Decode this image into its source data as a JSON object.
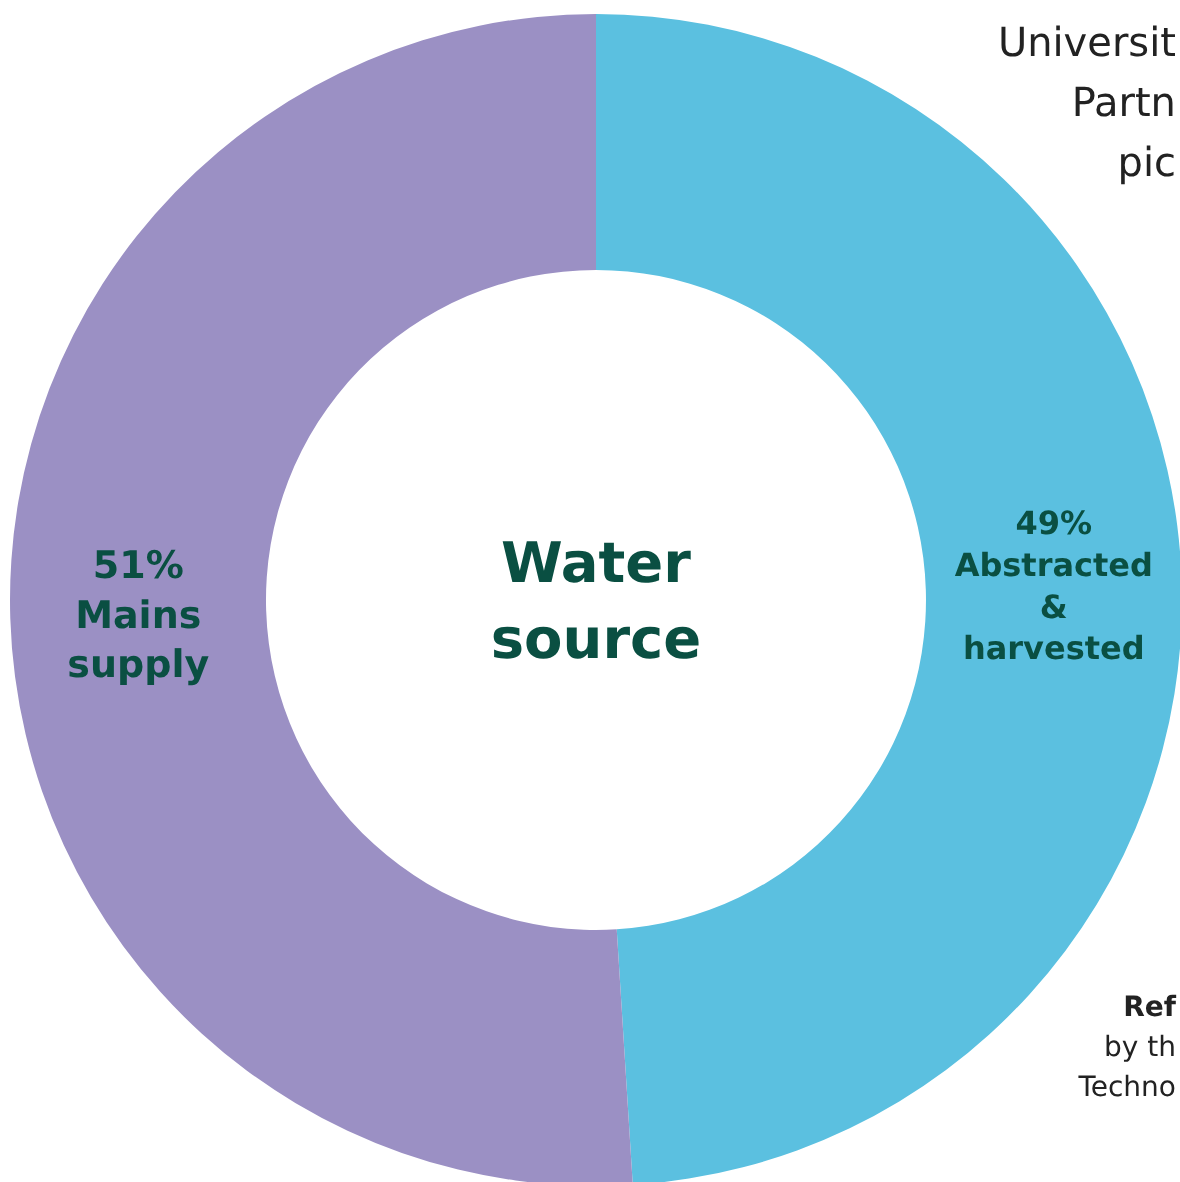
{
  "chart_data": {
    "type": "donut",
    "title": "Water source",
    "categories": [
      "Abstracted & harvested",
      "Mains supply"
    ],
    "values": [
      49,
      51
    ],
    "value_labels": [
      "49%",
      "51%"
    ],
    "colors": [
      "#5bc0e0",
      "#9b90c4"
    ],
    "annotations": [
      "Universit",
      "Partn",
      "pic",
      "Ref",
      "by th",
      "Techno"
    ]
  }
}
